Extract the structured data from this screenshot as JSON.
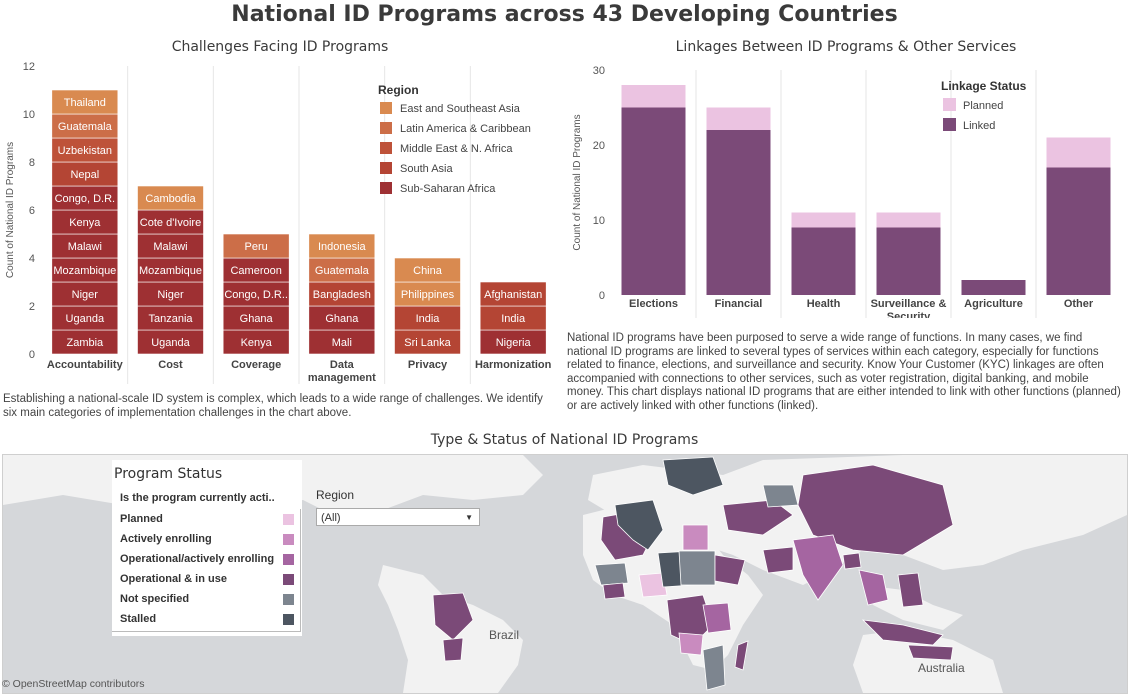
{
  "title": "National ID Programs across 43 Developing Countries",
  "colors": {
    "east_southeast_asia": "#d98a50",
    "latin_america": "#cc6e48",
    "middle_east": "#be5239",
    "south_asia": "#b44534",
    "sub_saharan": "#9e3033",
    "linked": "#7b4a78",
    "planned": "#ebc3e1",
    "status_planned": "#ebc3e1",
    "status_actively": "#c98bbf",
    "status_operational_active": "#a565a1",
    "status_operational": "#7b4a78",
    "status_not_specified": "#7d858f",
    "status_stalled": "#4d5661",
    "map_water": "#d5d7da",
    "map_land": "#f2f2f2"
  },
  "challenges": {
    "title": "Challenges Facing ID Programs",
    "ylabel": "Count of National ID Programs",
    "legend_title": "Region",
    "description": "Establishing a national-scale ID system is complex, which leads to a wide range of challenges. We identify six main categories of implementation challenges in the chart above.",
    "chart_data": {
      "type": "bar",
      "stacked": true,
      "ylabel": "Count of National ID Programs",
      "ylim": [
        0,
        12
      ],
      "yticks": [
        0,
        2,
        4,
        6,
        8,
        10,
        12
      ],
      "categories": [
        "Accountability",
        "Cost",
        "Coverage",
        "Data management",
        "Privacy",
        "Harmonization"
      ],
      "category_lines": [
        [
          "Accountability"
        ],
        [
          "Cost"
        ],
        [
          "Coverage"
        ],
        [
          "Data",
          "management"
        ],
        [
          "Privacy"
        ],
        [
          "Harmonization"
        ]
      ],
      "legend": [
        {
          "name": "East and Southeast Asia",
          "color": "#d98a50"
        },
        {
          "name": "Latin America & Caribbean",
          "color": "#cc6e48"
        },
        {
          "name": "Middle East & N. Africa",
          "color": "#be5239"
        },
        {
          "name": "South Asia",
          "color": "#b44534"
        },
        {
          "name": "Sub-Saharan Africa",
          "color": "#9e3033"
        }
      ],
      "stacks": [
        [
          "Zambia",
          "Uganda",
          "Niger",
          "Mozambique",
          "Malawi",
          "Kenya",
          "Congo, D.R.",
          "Nepal",
          "Uzbekistan",
          "Guatemala",
          "Thailand"
        ],
        [
          "Uganda",
          "Tanzania",
          "Niger",
          "Mozambique",
          "Malawi",
          "Cote d'Ivoire",
          "Cambodia"
        ],
        [
          "Kenya",
          "Ghana",
          "Congo, D.R..",
          "Cameroon",
          "Peru"
        ],
        [
          "Mali",
          "Ghana",
          "Bangladesh",
          "Guatemala",
          "Indonesia"
        ],
        [
          "Sri Lanka",
          "India",
          "Philippines",
          "China"
        ],
        [
          "Nigeria",
          "India",
          "Afghanistan"
        ]
      ],
      "stack_regions": [
        [
          4,
          4,
          4,
          4,
          4,
          4,
          4,
          3,
          2,
          1,
          0
        ],
        [
          4,
          4,
          4,
          4,
          4,
          4,
          0
        ],
        [
          4,
          4,
          4,
          4,
          1
        ],
        [
          4,
          4,
          3,
          1,
          0
        ],
        [
          3,
          3,
          0,
          0
        ],
        [
          4,
          3,
          3
        ]
      ]
    }
  },
  "linkages": {
    "title": "Linkages Between ID Programs & Other Services",
    "ylabel": "Count of National ID Programs",
    "legend_title": "Linkage Status",
    "description": "National ID programs have been purposed to serve a wide range of functions. In many cases, we find national ID programs are linked to several types of services within each category, especially for functions related to finance, elections, and surveillance and security. Know Your Customer (KYC) linkages are often accompanied with connections to other services, such as voter registration, digital banking, and mobile money. This chart displays national ID programs that are either intended to link with other functions (planned) or are actively linked with other functions (linked).",
    "chart_data": {
      "type": "bar",
      "stacked": true,
      "ylabel": "Count of National ID Programs",
      "ylim": [
        0,
        30
      ],
      "yticks": [
        0,
        10,
        20,
        30
      ],
      "categories": [
        "Elections",
        "Financial",
        "Health",
        "Surveillance & Security",
        "Agriculture",
        "Other"
      ],
      "category_lines": [
        [
          "Elections"
        ],
        [
          "Financial"
        ],
        [
          "Health"
        ],
        [
          "Surveillance &",
          "Security"
        ],
        [
          "Agriculture"
        ],
        [
          "Other"
        ]
      ],
      "series": [
        {
          "name": "Linked",
          "color": "#7b4a78",
          "values": [
            25,
            22,
            9,
            9,
            2,
            17
          ]
        },
        {
          "name": "Planned",
          "color": "#ebc3e1",
          "values": [
            3,
            3,
            2,
            2,
            0,
            4
          ]
        }
      ],
      "legend": [
        {
          "name": "Planned",
          "color": "#ebc3e1"
        },
        {
          "name": "Linked",
          "color": "#7b4a78"
        }
      ]
    }
  },
  "map": {
    "title": "Type & Status of National ID Programs",
    "legend_title": "Program Status",
    "legend_sub": "Is the program currently acti..",
    "statuses": [
      {
        "label": "Planned",
        "color": "#ebc3e1"
      },
      {
        "label": "Actively enrolling",
        "color": "#c98bbf"
      },
      {
        "label": "Operational/actively enrolling",
        "color": "#a565a1"
      },
      {
        "label": "Operational & in use",
        "color": "#7b4a78"
      },
      {
        "label": "Not specified",
        "color": "#7d858f"
      },
      {
        "label": "Stalled",
        "color": "#4d5661"
      }
    ],
    "region_filter": {
      "label": "Region",
      "value": "(All)"
    },
    "place_labels": {
      "brazil": "Brazil",
      "australia": "Australia"
    },
    "attribution": "© OpenStreetMap contributors"
  }
}
